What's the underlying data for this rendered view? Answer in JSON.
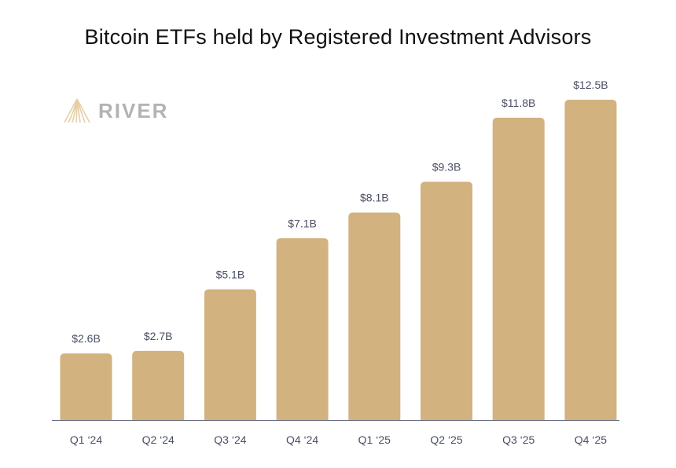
{
  "brand": {
    "name": "RIVER",
    "logo_icon": "river-mountain-icon",
    "color": "#e6cfa6",
    "text_color": "#b3b3b3"
  },
  "colors": {
    "bar": "#d2b27f",
    "axis": "#6b7080",
    "label": "#4a4f63"
  },
  "chart_data": {
    "type": "bar",
    "title": "Bitcoin ETFs held by Registered Investment Advisors",
    "xlabel": "",
    "ylabel": "",
    "categories": [
      "Q1 ‘24",
      "Q2 ‘24",
      "Q3 ‘24",
      "Q4 ‘24",
      "Q1 ‘25",
      "Q2 ‘25",
      "Q3 ‘25",
      "Q4 ‘25"
    ],
    "values": [
      2.6,
      2.7,
      5.1,
      7.1,
      8.1,
      9.3,
      11.8,
      12.5
    ],
    "value_labels": [
      "$2.6B",
      "$2.7B",
      "$5.1B",
      "$7.1B",
      "$8.1B",
      "$9.3B",
      "$11.8B",
      "$12.5B"
    ],
    "ylim": [
      0,
      12.5
    ],
    "grid": false,
    "legend": "none"
  }
}
